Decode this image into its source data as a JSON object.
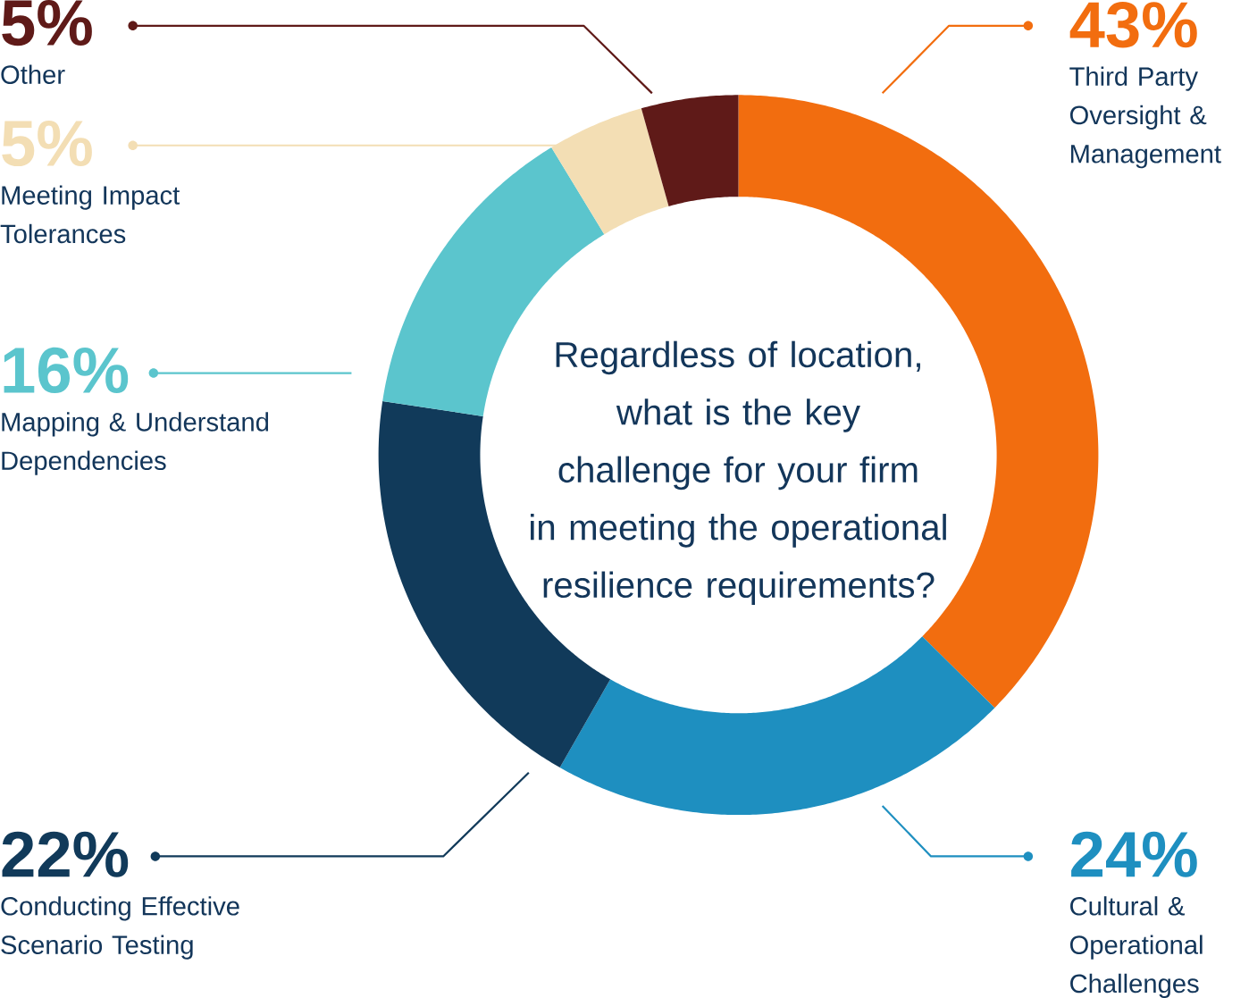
{
  "chart_data": {
    "type": "donut",
    "title": "Regardless of location, what is the key challenge for your firm in meeting the operational resilience requirements?",
    "categories": [
      "Third Party Oversight & Management",
      "Cultural & Operational Challenges",
      "Conducting Effective Scenario Testing",
      "Mapping & Understand Dependencies",
      "Meeting Impact Tolerances",
      "Other"
    ],
    "values": [
      43,
      24,
      22,
      16,
      5,
      5
    ],
    "value_labels": [
      "43%",
      "24%",
      "22%",
      "16%",
      "5%",
      "5%"
    ],
    "colors": [
      "#f26d0f",
      "#1e8fc0",
      "#113a5a",
      "#5bc5cd",
      "#f3deb4",
      "#5f1a18"
    ]
  }
}
